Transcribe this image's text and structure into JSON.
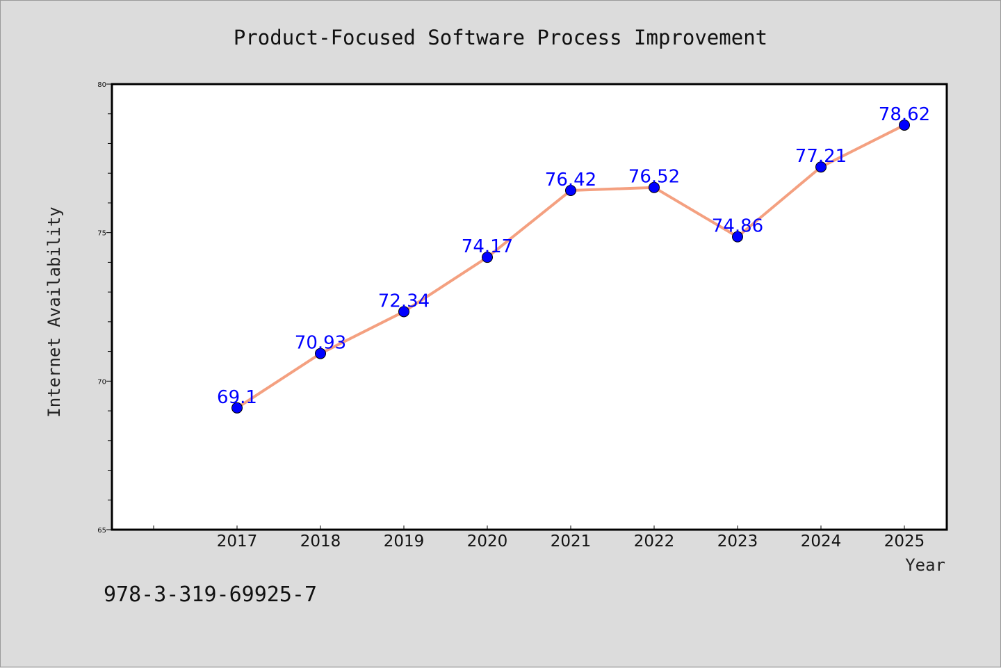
{
  "chart_data": {
    "type": "line",
    "title": "Product-Focused Software Process Improvement",
    "xlabel": "Year",
    "ylabel": "Internet Availability",
    "x": [
      "2017",
      "2018",
      "2019",
      "2020",
      "2021",
      "2022",
      "2023",
      "2024",
      "2025"
    ],
    "series": [
      {
        "values": [
          69.1,
          70.93,
          72.34,
          74.17,
          76.42,
          76.52,
          74.86,
          77.21,
          78.62
        ]
      }
    ],
    "ylim": [
      65,
      80
    ],
    "yticks": [
      "65",
      "70",
      "75",
      "80"
    ],
    "ytick_values": [
      65,
      70,
      75,
      80
    ],
    "data_labels": [
      "69.1",
      "70.93",
      "72.34",
      "74.17",
      "76.42",
      "76.52",
      "74.86",
      "77.21",
      "78.62"
    ],
    "grid": false,
    "legend": "none",
    "colors": {
      "line": "#f4a080",
      "marker": "#0000ff",
      "label": "#0000ff",
      "background": "#dcdcdc",
      "plot_area": "#ffffff"
    }
  },
  "footer": {
    "code": "978-3-319-69925-7"
  }
}
